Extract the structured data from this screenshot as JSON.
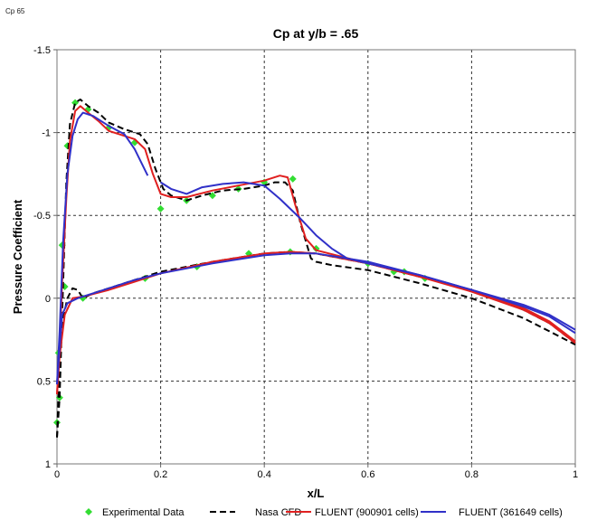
{
  "window": {
    "caption": "Cp 65"
  },
  "chart_data": {
    "type": "line",
    "title": "Cp at y/b = .65",
    "xlabel": "x/L",
    "ylabel": "Pressure Coefficient",
    "xlim": [
      0,
      1
    ],
    "ylim": [
      -1.5,
      1
    ],
    "y_inverted": true,
    "grid": true,
    "legend_placement": "bottom",
    "x_ticks": [
      {
        "value": 0,
        "label": "0"
      },
      {
        "value": 0.2,
        "label": "0.2"
      },
      {
        "value": 0.4,
        "label": "0.4"
      },
      {
        "value": 0.6,
        "label": "0.6"
      },
      {
        "value": 0.8,
        "label": "0.8"
      },
      {
        "value": 1,
        "label": "1"
      }
    ],
    "y_ticks": [
      {
        "value": -1.5,
        "label": "-1.5"
      },
      {
        "value": -1,
        "label": "-1"
      },
      {
        "value": -0.5,
        "label": "-0.5"
      },
      {
        "value": 0,
        "label": "0"
      },
      {
        "value": 0.5,
        "label": "0.5"
      },
      {
        "value": 1,
        "label": "1"
      }
    ],
    "series": [
      {
        "name": "Experimental Data",
        "style": "markers",
        "color": "#33dd33",
        "points": [
          [
            0,
            0.75
          ],
          [
            0.003,
            0.33
          ],
          [
            0.005,
            0.6
          ],
          [
            0.01,
            -0.32
          ],
          [
            0.015,
            -0.07
          ],
          [
            0.02,
            -0.92
          ],
          [
            0.035,
            -1.18
          ],
          [
            0.05,
            0.0
          ],
          [
            0.06,
            -1.14
          ],
          [
            0.1,
            -1.03
          ],
          [
            0.15,
            -0.94
          ],
          [
            0.17,
            -0.12
          ],
          [
            0.2,
            -0.54
          ],
          [
            0.25,
            -0.59
          ],
          [
            0.27,
            -0.19
          ],
          [
            0.3,
            -0.62
          ],
          [
            0.35,
            -0.66
          ],
          [
            0.37,
            -0.27
          ],
          [
            0.4,
            -0.7
          ],
          [
            0.45,
            -0.28
          ],
          [
            0.455,
            -0.72
          ],
          [
            0.5,
            -0.3
          ],
          [
            0.6,
            -0.21
          ],
          [
            0.65,
            -0.16
          ],
          [
            0.67,
            -0.16
          ],
          [
            0.71,
            -0.12
          ]
        ]
      },
      {
        "name": "Nasa CFD",
        "style": "dashed",
        "color": "#000000",
        "segments": [
          [
            [
              0,
              0.84
            ],
            [
              0.005,
              0.6
            ],
            [
              0.01,
              0.1
            ],
            [
              0.018,
              -0.7
            ],
            [
              0.025,
              -1.05
            ],
            [
              0.035,
              -1.18
            ],
            [
              0.045,
              -1.2
            ],
            [
              0.06,
              -1.16
            ],
            [
              0.08,
              -1.12
            ],
            [
              0.1,
              -1.06
            ],
            [
              0.13,
              -1.02
            ],
            [
              0.16,
              -0.99
            ],
            [
              0.175,
              -0.93
            ],
            [
              0.19,
              -0.78
            ],
            [
              0.205,
              -0.66
            ],
            [
              0.22,
              -0.62
            ],
            [
              0.25,
              -0.59
            ],
            [
              0.28,
              -0.62
            ],
            [
              0.32,
              -0.65
            ],
            [
              0.36,
              -0.66
            ],
            [
              0.4,
              -0.68
            ],
            [
              0.42,
              -0.7
            ],
            [
              0.44,
              -0.7
            ],
            [
              0.455,
              -0.65
            ],
            [
              0.47,
              -0.45
            ],
            [
              0.49,
              -0.24
            ],
            [
              0.5,
              -0.22
            ],
            [
              0.53,
              -0.2
            ],
            [
              0.6,
              -0.17
            ],
            [
              0.7,
              -0.09
            ],
            [
              0.8,
              0.0
            ],
            [
              0.9,
              0.12
            ],
            [
              0.95,
              0.2
            ],
            [
              1,
              0.28
            ]
          ],
          [
            [
              0,
              0.84
            ],
            [
              0.005,
              0.4
            ],
            [
              0.01,
              0.15
            ],
            [
              0.02,
              0.0
            ],
            [
              0.03,
              -0.06
            ],
            [
              0.04,
              -0.05
            ],
            [
              0.05,
              0.0
            ],
            [
              0.07,
              -0.03
            ],
            [
              0.1,
              -0.06
            ],
            [
              0.15,
              -0.11
            ],
            [
              0.2,
              -0.16
            ],
            [
              0.3,
              -0.22
            ],
            [
              0.4,
              -0.27
            ],
            [
              0.45,
              -0.28
            ],
            [
              0.5,
              -0.27
            ],
            [
              0.6,
              -0.21
            ],
            [
              0.7,
              -0.13
            ],
            [
              0.8,
              -0.05
            ],
            [
              0.9,
              0.07
            ],
            [
              0.95,
              0.15
            ],
            [
              1,
              0.27
            ]
          ]
        ]
      },
      {
        "name": "FLUENT (900901 cells)",
        "style": "solid",
        "color": "#e02020",
        "segments": [
          [
            [
              0,
              0.58
            ],
            [
              0.005,
              0.3
            ],
            [
              0.01,
              -0.1
            ],
            [
              0.018,
              -0.6
            ],
            [
              0.025,
              -0.95
            ],
            [
              0.035,
              -1.13
            ],
            [
              0.045,
              -1.16
            ],
            [
              0.06,
              -1.12
            ],
            [
              0.08,
              -1.07
            ],
            [
              0.1,
              -1.01
            ],
            [
              0.12,
              -0.99
            ],
            [
              0.15,
              -0.96
            ],
            [
              0.17,
              -0.9
            ],
            [
              0.185,
              -0.75
            ],
            [
              0.2,
              -0.63
            ],
            [
              0.22,
              -0.61
            ],
            [
              0.25,
              -0.61
            ],
            [
              0.3,
              -0.65
            ],
            [
              0.35,
              -0.68
            ],
            [
              0.4,
              -0.71
            ],
            [
              0.43,
              -0.74
            ],
            [
              0.445,
              -0.73
            ],
            [
              0.46,
              -0.56
            ],
            [
              0.48,
              -0.36
            ],
            [
              0.5,
              -0.29
            ],
            [
              0.55,
              -0.25
            ],
            [
              0.6,
              -0.21
            ],
            [
              0.7,
              -0.13
            ],
            [
              0.8,
              -0.04
            ],
            [
              0.9,
              0.07
            ],
            [
              0.95,
              0.15
            ],
            [
              1,
              0.27
            ]
          ],
          [
            [
              0,
              0.58
            ],
            [
              0.005,
              0.35
            ],
            [
              0.015,
              0.1
            ],
            [
              0.03,
              0.0
            ],
            [
              0.05,
              -0.01
            ],
            [
              0.1,
              -0.05
            ],
            [
              0.15,
              -0.1
            ],
            [
              0.2,
              -0.15
            ],
            [
              0.3,
              -0.22
            ],
            [
              0.4,
              -0.27
            ],
            [
              0.45,
              -0.28
            ],
            [
              0.5,
              -0.27
            ],
            [
              0.6,
              -0.21
            ],
            [
              0.7,
              -0.13
            ],
            [
              0.8,
              -0.05
            ],
            [
              0.9,
              0.06
            ],
            [
              0.95,
              0.14
            ],
            [
              1,
              0.26
            ]
          ]
        ]
      },
      {
        "name": "FLUENT (361649 cells)",
        "style": "solid",
        "color": "#3030c8",
        "segments": [
          [
            [
              0,
              0.52
            ],
            [
              0.005,
              0.2
            ],
            [
              0.012,
              -0.35
            ],
            [
              0.02,
              -0.75
            ],
            [
              0.03,
              -0.98
            ],
            [
              0.04,
              -1.08
            ],
            [
              0.05,
              -1.12
            ],
            [
              0.07,
              -1.1
            ],
            [
              0.1,
              -1.04
            ],
            [
              0.13,
              -0.99
            ],
            [
              0.15,
              -0.9
            ],
            [
              0.175,
              -0.74
            ]
          ],
          [
            [
              0.2,
              -0.7
            ],
            [
              0.22,
              -0.66
            ],
            [
              0.25,
              -0.63
            ],
            [
              0.28,
              -0.67
            ],
            [
              0.32,
              -0.69
            ],
            [
              0.36,
              -0.7
            ],
            [
              0.4,
              -0.68
            ],
            [
              0.43,
              -0.6
            ],
            [
              0.47,
              -0.48
            ],
            [
              0.5,
              -0.38
            ],
            [
              0.53,
              -0.3
            ],
            [
              0.56,
              -0.24
            ],
            [
              0.6,
              -0.21
            ],
            [
              0.7,
              -0.14
            ],
            [
              0.8,
              -0.05
            ],
            [
              0.9,
              0.05
            ],
            [
              0.95,
              0.11
            ],
            [
              1,
              0.21
            ]
          ],
          [
            [
              0,
              0.52
            ],
            [
              0.005,
              0.3
            ],
            [
              0.01,
              0.1
            ],
            [
              0.02,
              0.03
            ],
            [
              0.04,
              0.0
            ],
            [
              0.07,
              -0.03
            ],
            [
              0.1,
              -0.06
            ],
            [
              0.15,
              -0.11
            ],
            [
              0.2,
              -0.15
            ],
            [
              0.3,
              -0.21
            ],
            [
              0.4,
              -0.26
            ],
            [
              0.45,
              -0.27
            ],
            [
              0.5,
              -0.27
            ],
            [
              0.6,
              -0.22
            ],
            [
              0.7,
              -0.14
            ],
            [
              0.8,
              -0.05
            ],
            [
              0.9,
              0.04
            ],
            [
              0.95,
              0.1
            ],
            [
              1,
              0.19
            ]
          ]
        ]
      }
    ]
  }
}
